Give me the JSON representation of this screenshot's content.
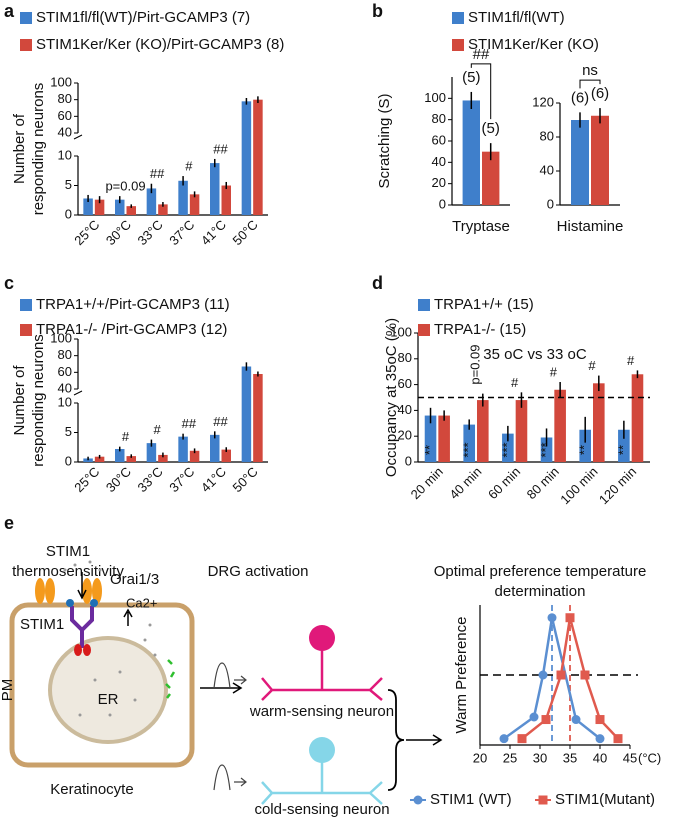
{
  "panel_labels": [
    "a",
    "b",
    "c",
    "d",
    "e"
  ],
  "chart_data": [
    {
      "type": "bar",
      "ylabel": [
        "Number of",
        "responding neurons"
      ],
      "categories": [
        "25°C",
        "30°C",
        "33°C",
        "37°C",
        "41°C",
        "50°C"
      ],
      "series": [
        {
          "name": "STIM1fl/fl(WT)/Pirt-GCAMP3 (7)",
          "color": "#3f7fcb",
          "values": [
            2.8,
            2.6,
            4.5,
            5.8,
            8.8,
            78
          ],
          "errors": [
            0.6,
            0.6,
            0.8,
            0.8,
            0.7,
            4
          ]
        },
        {
          "name": "STIM1Ker/Ker (KO)/Pirt-GCAMP3 (8)",
          "color": "#d2483c",
          "values": [
            2.6,
            1.5,
            1.8,
            3.5,
            5.0,
            80
          ],
          "errors": [
            0.6,
            0.3,
            0.4,
            0.5,
            0.6,
            4
          ]
        }
      ],
      "annotations": [
        null,
        "p=0.09",
        "##",
        "#",
        "##",
        null
      ],
      "ylim": [
        0,
        100
      ],
      "y_break": [
        10,
        40
      ],
      "yticks": [
        0,
        5,
        10,
        40,
        60,
        80,
        100
      ]
    },
    {
      "type": "bar",
      "ylabel": [
        "Scratching (S)"
      ],
      "xlabel": "Tryptase",
      "series": [
        {
          "name": "STIM1fl/fl(WT)",
          "color": "#3f7fcb",
          "values": [
            98
          ],
          "errors": [
            8
          ],
          "bar_labels": [
            "(5)"
          ]
        },
        {
          "name": "STIM1Ker/Ker (KO)",
          "color": "#d2483c",
          "values": [
            50
          ],
          "errors": [
            8
          ],
          "bar_labels": [
            "(5)"
          ]
        }
      ],
      "significance": "##",
      "ylim": [
        0,
        120
      ],
      "yticks": [
        0,
        20,
        40,
        60,
        80,
        100
      ]
    },
    {
      "type": "bar",
      "xlabel": "Histamine",
      "series": [
        {
          "color": "#3f7fcb",
          "values": [
            100
          ],
          "errors": [
            9
          ],
          "bar_labels": [
            "(6)"
          ]
        },
        {
          "color": "#d2483c",
          "values": [
            105
          ],
          "errors": [
            9
          ],
          "bar_labels": [
            "(6)"
          ]
        }
      ],
      "significance": "ns",
      "ylim": [
        0,
        120
      ],
      "yticks": [
        0,
        40,
        80,
        120
      ]
    },
    {
      "type": "bar",
      "ylabel": [
        "Number of",
        "responding neurons"
      ],
      "categories": [
        "25°C",
        "30°C",
        "33°C",
        "37°C",
        "41°C",
        "50°C"
      ],
      "series": [
        {
          "name": "TRPA1+/+/Pirt-GCAMP3 (11)",
          "color": "#3f7fcb",
          "values": [
            0.6,
            2.2,
            3.2,
            4.3,
            4.6,
            67
          ],
          "errors": [
            0.3,
            0.4,
            0.6,
            0.5,
            0.6,
            5
          ]
        },
        {
          "name": "TRPA1-/- /Pirt-GCAMP3 (12)",
          "color": "#d2483c",
          "values": [
            0.9,
            1.0,
            1.2,
            1.9,
            2.1,
            58
          ],
          "errors": [
            0.3,
            0.3,
            0.4,
            0.4,
            0.4,
            3
          ]
        }
      ],
      "annotations": [
        null,
        "#",
        "#",
        "##",
        "##",
        null
      ],
      "ylim": [
        0,
        100
      ],
      "y_break": [
        10,
        40
      ],
      "yticks": [
        0,
        5,
        10,
        40,
        60,
        80,
        100
      ]
    },
    {
      "type": "bar",
      "ylabel": [
        "Occupancy at 35oC (%)"
      ],
      "subtitle": "35 oC vs 33 oC",
      "categories": [
        "20 min",
        "40 min",
        "60 min",
        "80 min",
        "100 min",
        "120 min"
      ],
      "series": [
        {
          "name": "TRPA1+/+ (15)",
          "color": "#3f7fcb",
          "values": [
            36,
            29,
            22,
            19,
            25,
            25
          ],
          "errors": [
            6,
            4,
            6,
            7,
            10,
            7
          ],
          "bar_labels": [
            "**",
            "***",
            "***",
            "***",
            "**",
            "**"
          ]
        },
        {
          "name": "TRPA1-/-  (15)",
          "color": "#d2483c",
          "values": [
            36,
            48,
            48,
            56,
            61,
            68
          ],
          "errors": [
            4,
            5,
            6,
            6,
            6,
            3
          ]
        }
      ],
      "annotations": [
        null,
        "p=0.09",
        "#",
        "#",
        "#",
        "#"
      ],
      "reference_line": 50,
      "ylim": [
        0,
        100
      ],
      "yticks": [
        0,
        20,
        40,
        60,
        80,
        100
      ]
    },
    {
      "type": "line",
      "title": [
        "Optimal preference temperature",
        "determination"
      ],
      "ylabel": [
        "Warm Preference"
      ],
      "xlabel": "(°C)",
      "series": [
        {
          "name": "STIM1 (WT)",
          "color": "#5b8fd1",
          "marker": "circle",
          "x": [
            24,
            29,
            30.5,
            32,
            36,
            40
          ],
          "values": [
            0.05,
            0.22,
            0.55,
            1.0,
            0.2,
            0.05
          ]
        },
        {
          "name": "STIM1(Mutant)",
          "color": "#e05a4e",
          "marker": "square",
          "x": [
            27,
            31,
            33.5,
            35,
            37.5,
            40,
            43
          ],
          "values": [
            0.05,
            0.2,
            0.55,
            1.0,
            0.55,
            0.2,
            0.05
          ]
        }
      ],
      "reference_x": [
        32,
        35
      ],
      "reference_y": 0.55,
      "xlim": [
        20,
        45
      ],
      "xticks": [
        20,
        25,
        30,
        35,
        40,
        45
      ],
      "ylim": [
        0,
        1.1
      ]
    }
  ],
  "diagram": {
    "titles": [
      [
        "STIM1",
        "thermosensitivity"
      ],
      [
        "DRG activation"
      ]
    ],
    "labels": {
      "orai": "Orai1/3",
      "ca": "Ca2+",
      "stim1": "STIM1",
      "er": "ER",
      "pm": "PM",
      "cell": "Keratinocyte",
      "warm": "warm-sensing neuron",
      "cold": "cold-sensing neuron"
    }
  }
}
